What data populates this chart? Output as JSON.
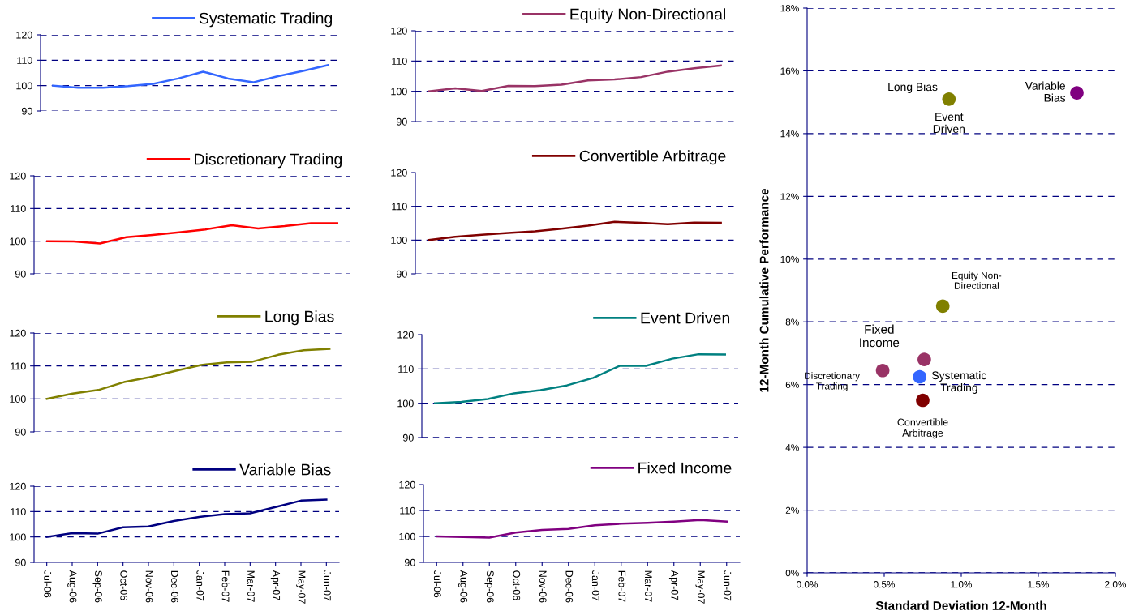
{
  "chart_data": [
    {
      "type": "line",
      "categories": [
        null,
        null,
        null,
        null,
        null,
        null,
        null,
        null,
        null,
        null,
        null,
        null
      ],
      "ylim": [
        90,
        120
      ],
      "yticks": [
        90,
        100,
        110,
        120
      ],
      "grid": "y",
      "legend": "top right",
      "tick_labels": "y",
      "series": [
        {
          "name": "Systematic Trading",
          "color": "#3366ff",
          "values": [
            100,
            99.2,
            99.2,
            99.8,
            100.7,
            102.8,
            105.5,
            102.8,
            101.3,
            103.7,
            105.8,
            108.1
          ]
        }
      ]
    },
    {
      "type": "line",
      "categories": [
        null,
        null,
        null,
        null,
        null,
        null,
        null,
        null,
        null,
        null,
        null,
        null
      ],
      "ylim": [
        90,
        120
      ],
      "yticks": [
        90,
        100,
        110,
        120
      ],
      "grid": "y",
      "legend": "top right",
      "tick_labels": "y",
      "series": [
        {
          "name": "Equity Non-Directional",
          "color": "#993366",
          "values": [
            100,
            101.0,
            100.1,
            101.8,
            101.7,
            102.2,
            103.6,
            103.9,
            104.7,
            106.5,
            107.6,
            108.5
          ]
        }
      ]
    },
    {
      "type": "scatter",
      "xlabel": "Standard Deviation 12-Month",
      "ylabel": "12-Month Cumulative Performance",
      "xlim": [
        0,
        2
      ],
      "ylim": [
        0,
        18
      ],
      "xticks": [
        {
          "value": 0,
          "label": "0.0%"
        },
        {
          "value": 0.5,
          "label": "0.5%"
        },
        {
          "value": 1,
          "label": "1.0%"
        },
        {
          "value": 1.5,
          "label": "1.5%"
        },
        {
          "value": 2,
          "label": "2.0%"
        }
      ],
      "yticks": [
        {
          "value": 0,
          "label": "0%"
        },
        {
          "value": 2,
          "label": "2%"
        },
        {
          "value": 4,
          "label": "4%"
        },
        {
          "value": 6,
          "label": "6%"
        },
        {
          "value": 8,
          "label": "8%"
        },
        {
          "value": 10,
          "label": "10%"
        },
        {
          "value": 12,
          "label": "12%"
        },
        {
          "value": 14,
          "label": "14%"
        },
        {
          "value": 16,
          "label": "16%"
        },
        {
          "value": 18,
          "label": "18%"
        }
      ],
      "grid": "y",
      "marker": "circle",
      "x": [
        0.92,
        1.75,
        0.88,
        0.49,
        0.76,
        0.73,
        0.75
      ],
      "values": [
        15.1,
        15.3,
        8.5,
        6.45,
        6.8,
        6.25,
        5.5
      ],
      "colors": [
        "#808000",
        "#800080",
        "#808000",
        "#993366",
        "#993366",
        "#3366ff",
        "#800000"
      ],
      "annotations": [
        {
          "text": "Long Bias",
          "x": 0.92,
          "y": 15.1
        },
        {
          "text": "Event\nDriven",
          "x": 0.92,
          "y": 15.1
        },
        {
          "text": "Variable\nBias",
          "x": 1.75,
          "y": 15.3
        },
        {
          "text": "Equity Non-\nDirectional",
          "x": 0.88,
          "y": 8.5
        },
        {
          "text": "Fixed\nIncome",
          "x": 0.76,
          "y": 6.8
        },
        {
          "text": "Discretionary\nTrading",
          "x": 0.49,
          "y": 6.45
        },
        {
          "text": "Systematic\nTrading",
          "x": 0.73,
          "y": 6.25
        },
        {
          "text": "Convertible\nArbitrage",
          "x": 0.75,
          "y": 5.5
        }
      ]
    },
    {
      "type": "line",
      "categories": [
        null,
        null,
        null,
        null,
        null,
        null,
        null,
        null,
        null,
        null,
        null,
        null
      ],
      "ylim": [
        90,
        120
      ],
      "yticks": [
        90,
        100,
        110,
        120
      ],
      "grid": "y",
      "legend": "top right",
      "tick_labels": "y",
      "series": [
        {
          "name": "Discretionary Trading",
          "color": "#ff0000",
          "values": [
            100,
            99.9,
            99.3,
            101.2,
            101.9,
            102.7,
            103.6,
            104.9,
            103.9,
            104.6,
            105.5,
            105.5
          ]
        }
      ]
    },
    {
      "type": "line",
      "categories": [
        null,
        null,
        null,
        null,
        null,
        null,
        null,
        null,
        null,
        null,
        null,
        null
      ],
      "ylim": [
        90,
        120
      ],
      "yticks": [
        90,
        100,
        110,
        120
      ],
      "grid": "y",
      "legend": "top right",
      "tick_labels": "y",
      "series": [
        {
          "name": "Convertible Arbitrage",
          "color": "#800000",
          "values": [
            100,
            101.0,
            101.6,
            102.1,
            102.6,
            103.4,
            104.3,
            105.4,
            105.1,
            104.7,
            105.2,
            105.1
          ]
        }
      ]
    },
    {
      "type": "line",
      "categories": [
        null,
        null,
        null,
        null,
        null,
        null,
        null,
        null,
        null,
        null,
        null,
        null
      ],
      "ylim": [
        90,
        120
      ],
      "yticks": [
        90,
        100,
        110,
        120
      ],
      "grid": "y",
      "legend": "top right",
      "tick_labels": "y",
      "series": [
        {
          "name": "Long Bias",
          "color": "#808000",
          "values": [
            100,
            101.6,
            102.7,
            105.1,
            106.6,
            108.5,
            110.3,
            111.1,
            111.3,
            113.4,
            114.8,
            115.2
          ]
        }
      ]
    },
    {
      "type": "line",
      "categories": [
        null,
        null,
        null,
        null,
        null,
        null,
        null,
        null,
        null,
        null,
        null,
        null
      ],
      "ylim": [
        90,
        120
      ],
      "yticks": [
        90,
        100,
        110,
        120
      ],
      "grid": "y",
      "legend": "top right",
      "tick_labels": "y",
      "series": [
        {
          "name": "Event Driven",
          "color": "#008080",
          "values": [
            100,
            100.4,
            101.2,
            102.9,
            103.8,
            105.2,
            107.4,
            110.9,
            110.9,
            113.0,
            114.3,
            114.2
          ]
        }
      ]
    },
    {
      "type": "line",
      "categories": [
        "Jul-06",
        "Aug-06",
        "Sep-06",
        "Oct-06",
        "Nov-06",
        "Dec-06",
        "Jan-07",
        "Feb-07",
        "Mar-07",
        "Apr-07",
        "May-07",
        "Jun-07"
      ],
      "ylim": [
        90,
        120
      ],
      "yticks": [
        90,
        100,
        110,
        120
      ],
      "grid": "y",
      "legend": "top right",
      "series": [
        {
          "name": "Variable Bias",
          "color": "#000080",
          "values": [
            100,
            101.5,
            101.3,
            103.8,
            104.1,
            106.3,
            107.9,
            109.0,
            109.3,
            111.8,
            114.3,
            114.7
          ]
        }
      ]
    },
    {
      "type": "line",
      "categories": [
        "Jul-06",
        "Aug-06",
        "Sep-06",
        "Oct-06",
        "Nov-06",
        "Dec-06",
        "Jan-07",
        "Feb-07",
        "Mar-07",
        "Apr-07",
        "May-07",
        "Jun-07"
      ],
      "ylim": [
        90,
        120
      ],
      "yticks": [
        90,
        100,
        110,
        120
      ],
      "grid": "y",
      "legend": "top right",
      "series": [
        {
          "name": "Fixed Income",
          "color": "#800080",
          "values": [
            100,
            99.8,
            99.5,
            101.5,
            102.5,
            102.9,
            104.3,
            104.9,
            105.2,
            105.7,
            106.3,
            105.7
          ]
        }
      ]
    }
  ]
}
